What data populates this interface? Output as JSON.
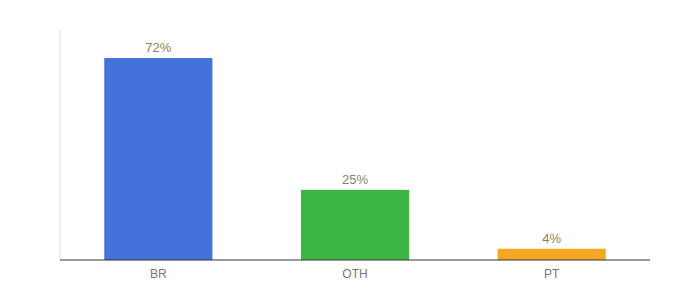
{
  "chart_data": {
    "type": "bar",
    "categories": [
      "BR",
      "OTH",
      "PT"
    ],
    "values": [
      72,
      25,
      4
    ],
    "value_labels": [
      "72%",
      "25%",
      "4%"
    ],
    "colors": [
      "#4472db",
      "#3cb544",
      "#f5a623"
    ],
    "ylim": [
      0,
      82
    ],
    "data_labels": true,
    "tick_labels": "x"
  }
}
